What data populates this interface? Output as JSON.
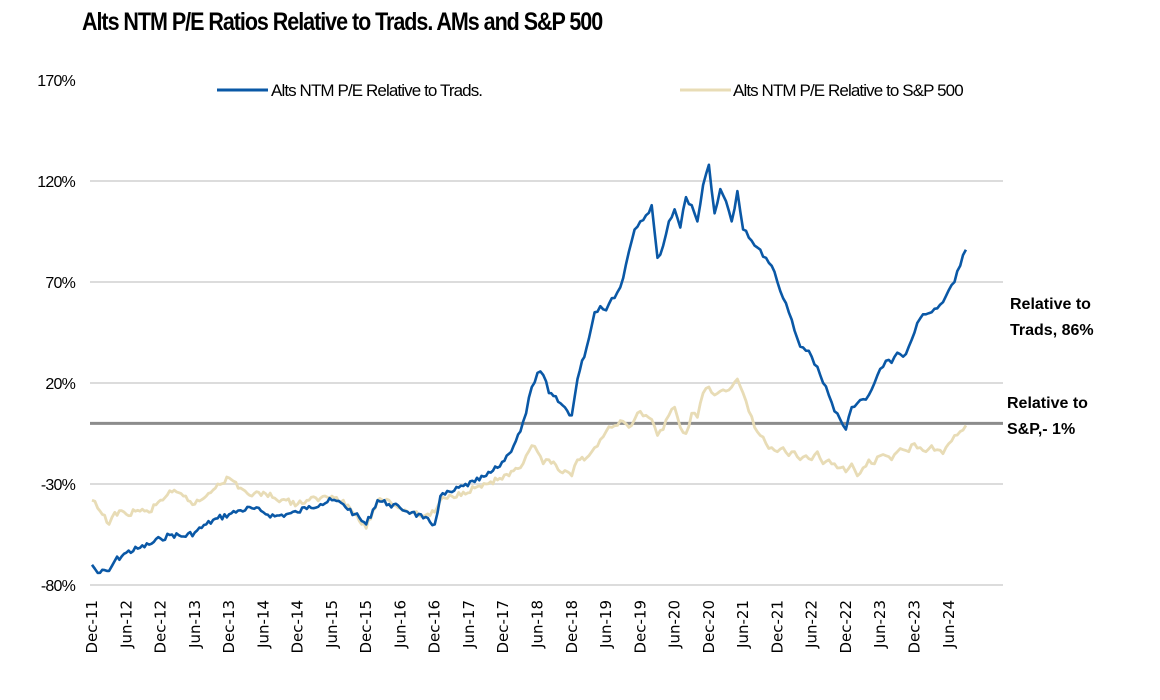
{
  "chart_data": {
    "type": "line",
    "title": "Alts NTM P/E Ratios Relative to Trads. AMs and S&P 500",
    "xlabel": "",
    "ylabel": "",
    "ylim": [
      -80,
      170
    ],
    "yticks": [
      170,
      120,
      70,
      20,
      -30,
      -80
    ],
    "ytick_labels": [
      "170%",
      "120%",
      "70%",
      "20%",
      "-30%",
      "-80%"
    ],
    "zero_line": 0,
    "grid": true,
    "legend_position": "top",
    "x_start": "2011-12",
    "x_end": "2024-09",
    "xtick_labels": [
      "Dec-11",
      "Jun-12",
      "Dec-12",
      "Jun-13",
      "Dec-13",
      "Jun-14",
      "Dec-14",
      "Jun-15",
      "Dec-15",
      "Jun-16",
      "Dec-16",
      "Jun-17",
      "Dec-17",
      "Jun-18",
      "Dec-18",
      "Jun-19",
      "Dec-19",
      "Jun-20",
      "Dec-20",
      "Jun-21",
      "Dec-21",
      "Jun-22",
      "Dec-22",
      "Jun-23",
      "Dec-23",
      "Jun-24"
    ],
    "series": [
      {
        "name": "Alts NTM P/E Relative to Trads.",
        "color": "#0a58a6",
        "x": [
          "2011-12",
          "2012-01",
          "2012-03",
          "2012-04",
          "2012-06",
          "2012-08",
          "2012-10",
          "2012-12",
          "2013-02",
          "2013-04",
          "2013-06",
          "2013-08",
          "2013-10",
          "2013-12",
          "2014-02",
          "2014-04",
          "2014-06",
          "2014-08",
          "2014-10",
          "2014-12",
          "2015-02",
          "2015-04",
          "2015-06",
          "2015-08",
          "2015-10",
          "2015-12",
          "2016-02",
          "2016-04",
          "2016-06",
          "2016-08",
          "2016-10",
          "2016-12",
          "2017-01",
          "2017-03",
          "2017-05",
          "2017-07",
          "2017-09",
          "2017-11",
          "2018-01",
          "2018-03",
          "2018-04",
          "2018-05",
          "2018-06",
          "2018-07",
          "2018-08",
          "2018-10",
          "2018-12",
          "2019-01",
          "2019-03",
          "2019-04",
          "2019-05",
          "2019-06",
          "2019-07",
          "2019-08",
          "2019-09",
          "2019-10",
          "2019-11",
          "2019-12",
          "2020-01",
          "2020-02",
          "2020-03",
          "2020-04",
          "2020-05",
          "2020-06",
          "2020-07",
          "2020-08",
          "2020-09",
          "2020-10",
          "2020-11",
          "2020-12",
          "2021-01",
          "2021-02",
          "2021-03",
          "2021-04",
          "2021-05",
          "2021-06",
          "2021-07",
          "2021-08",
          "2021-09",
          "2021-10",
          "2021-11",
          "2021-12",
          "2022-01",
          "2022-02",
          "2022-03",
          "2022-04",
          "2022-05",
          "2022-06",
          "2022-07",
          "2022-08",
          "2022-09",
          "2022-10",
          "2022-11",
          "2022-12",
          "2023-01",
          "2023-02",
          "2023-03",
          "2023-04",
          "2023-05",
          "2023-06",
          "2023-07",
          "2023-08",
          "2023-09",
          "2023-10",
          "2023-11",
          "2023-12",
          "2024-01",
          "2024-02",
          "2024-03",
          "2024-04",
          "2024-05",
          "2024-06",
          "2024-07",
          "2024-08",
          "2024-09"
        ],
        "values": [
          -70,
          -74,
          -73,
          -68,
          -64,
          -62,
          -60,
          -57,
          -55,
          -56,
          -54,
          -50,
          -47,
          -45,
          -43,
          -42,
          -44,
          -46,
          -45,
          -44,
          -41,
          -40,
          -38,
          -40,
          -45,
          -50,
          -38,
          -40,
          -42,
          -44,
          -47,
          -50,
          -36,
          -34,
          -31,
          -29,
          -26,
          -22,
          -15,
          -4,
          5,
          18,
          25,
          24,
          15,
          10,
          4,
          22,
          42,
          55,
          58,
          56,
          62,
          65,
          72,
          85,
          96,
          100,
          103,
          108,
          82,
          88,
          100,
          106,
          97,
          112,
          108,
          100,
          118,
          128,
          104,
          116,
          110,
          100,
          115,
          96,
          92,
          88,
          86,
          82,
          78,
          70,
          62,
          55,
          46,
          38,
          36,
          33,
          28,
          20,
          14,
          6,
          2,
          -3,
          8,
          10,
          12,
          14,
          20,
          27,
          31,
          30,
          35,
          33,
          38,
          45,
          52,
          54,
          55,
          57,
          60,
          66,
          70,
          78,
          86
        ]
      },
      {
        "name": "Alts NTM P/E Relative to S&P 500",
        "color": "#e8dcb6",
        "x": [
          "2011-12",
          "2012-01",
          "2012-03",
          "2012-04",
          "2012-06",
          "2012-08",
          "2012-10",
          "2012-12",
          "2013-02",
          "2013-04",
          "2013-06",
          "2013-08",
          "2013-10",
          "2013-12",
          "2014-02",
          "2014-04",
          "2014-06",
          "2014-08",
          "2014-10",
          "2014-12",
          "2015-02",
          "2015-04",
          "2015-06",
          "2015-08",
          "2015-10",
          "2015-12",
          "2016-02",
          "2016-04",
          "2016-06",
          "2016-08",
          "2016-10",
          "2016-12",
          "2017-01",
          "2017-03",
          "2017-05",
          "2017-07",
          "2017-09",
          "2017-11",
          "2018-01",
          "2018-03",
          "2018-04",
          "2018-05",
          "2018-06",
          "2018-07",
          "2018-08",
          "2018-10",
          "2018-12",
          "2019-01",
          "2019-03",
          "2019-04",
          "2019-05",
          "2019-06",
          "2019-07",
          "2019-08",
          "2019-09",
          "2019-10",
          "2019-11",
          "2019-12",
          "2020-01",
          "2020-02",
          "2020-03",
          "2020-04",
          "2020-05",
          "2020-06",
          "2020-07",
          "2020-08",
          "2020-09",
          "2020-10",
          "2020-11",
          "2020-12",
          "2021-01",
          "2021-02",
          "2021-03",
          "2021-04",
          "2021-05",
          "2021-06",
          "2021-07",
          "2021-08",
          "2021-09",
          "2021-10",
          "2021-11",
          "2021-12",
          "2022-01",
          "2022-02",
          "2022-03",
          "2022-04",
          "2022-05",
          "2022-06",
          "2022-07",
          "2022-08",
          "2022-09",
          "2022-10",
          "2022-11",
          "2022-12",
          "2023-01",
          "2023-02",
          "2023-03",
          "2023-04",
          "2023-05",
          "2023-06",
          "2023-07",
          "2023-08",
          "2023-09",
          "2023-10",
          "2023-11",
          "2023-12",
          "2024-01",
          "2024-02",
          "2024-03",
          "2024-04",
          "2024-05",
          "2024-06",
          "2024-07",
          "2024-08",
          "2024-09"
        ],
        "values": [
          -38,
          -42,
          -50,
          -44,
          -45,
          -43,
          -44,
          -38,
          -34,
          -36,
          -40,
          -36,
          -30,
          -27,
          -32,
          -36,
          -34,
          -37,
          -38,
          -40,
          -38,
          -37,
          -36,
          -38,
          -45,
          -52,
          -38,
          -38,
          -42,
          -44,
          -46,
          -44,
          -38,
          -36,
          -34,
          -32,
          -30,
          -28,
          -26,
          -22,
          -16,
          -11,
          -14,
          -20,
          -18,
          -24,
          -26,
          -18,
          -16,
          -12,
          -8,
          -4,
          -2,
          -1,
          1,
          -2,
          2,
          6,
          4,
          2,
          -6,
          -3,
          4,
          8,
          -2,
          -5,
          5,
          3,
          15,
          18,
          14,
          16,
          16,
          18,
          22,
          15,
          6,
          -2,
          -6,
          -10,
          -12,
          -14,
          -12,
          -16,
          -14,
          -18,
          -16,
          -18,
          -14,
          -20,
          -18,
          -20,
          -22,
          -24,
          -20,
          -26,
          -22,
          -18,
          -20,
          -16,
          -16,
          -18,
          -14,
          -13,
          -14,
          -10,
          -12,
          -14,
          -11,
          -13,
          -15,
          -10,
          -6,
          -4,
          -1
        ]
      }
    ],
    "annotations": [
      {
        "series": "Alts NTM P/E Relative to Trads.",
        "lines": [
          "Relative to",
          "Trads, 86%"
        ]
      },
      {
        "series": "Alts NTM P/E Relative to S&P 500",
        "lines": [
          "Relative to",
          "S&P,- 1%"
        ]
      }
    ]
  }
}
